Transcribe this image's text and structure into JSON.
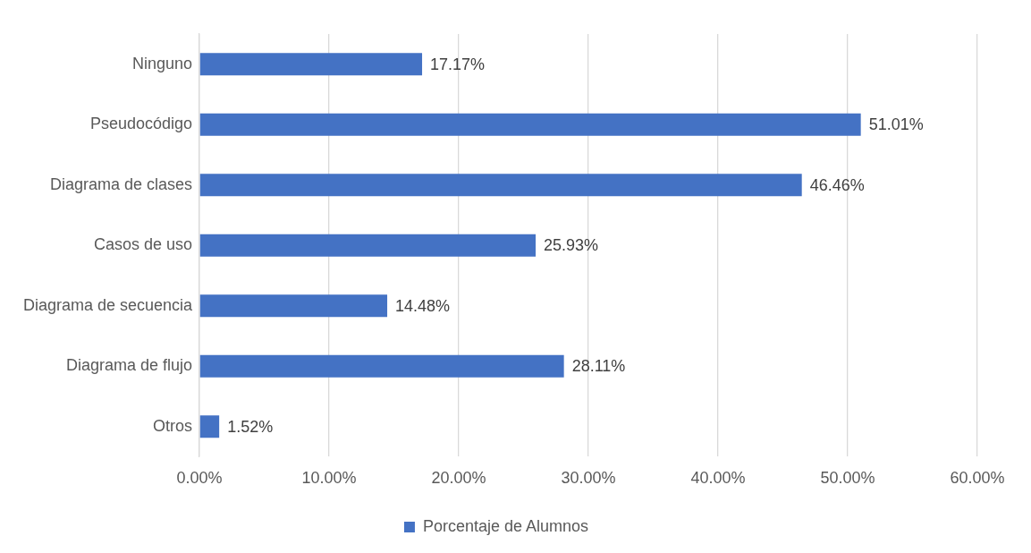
{
  "chart_data": {
    "type": "bar",
    "orientation": "horizontal",
    "categories": [
      "Ninguno",
      "Pseudocódigo",
      "Diagrama de clases",
      "Casos de uso",
      "Diagrama de secuencia",
      "Diagrama de flujo",
      "Otros"
    ],
    "series": [
      {
        "name": "Porcentaje de Alumnos",
        "color": "#4472c4",
        "values": [
          17.17,
          51.01,
          46.46,
          25.93,
          14.48,
          28.11,
          1.52
        ],
        "value_labels": [
          "17.17%",
          "51.01%",
          "46.46%",
          "25.93%",
          "14.48%",
          "28.11%",
          "1.52%"
        ]
      }
    ],
    "xlim": [
      0,
      60
    ],
    "xticks": [
      {
        "value": 0,
        "label": "0.00%"
      },
      {
        "value": 10,
        "label": "10.00%"
      },
      {
        "value": 20,
        "label": "20.00%"
      },
      {
        "value": 30,
        "label": "30.00%"
      },
      {
        "value": 40,
        "label": "40.00%"
      },
      {
        "value": 50,
        "label": "50.00%"
      },
      {
        "value": 60,
        "label": "60.00%"
      }
    ],
    "grid": "x",
    "legend": "bottom"
  }
}
